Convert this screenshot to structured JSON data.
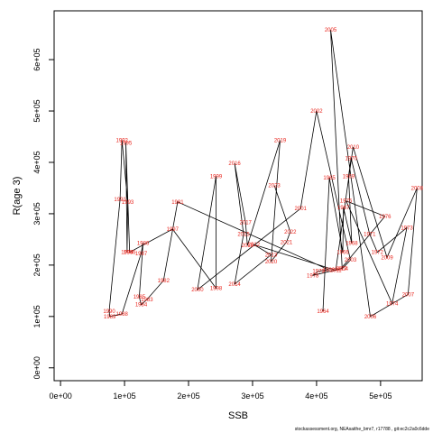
{
  "chart_data": {
    "type": "line",
    "xlabel": "SSB",
    "ylabel": "R(age 3)",
    "xlim": [
      -10000,
      565000
    ],
    "ylim": [
      -25000,
      695000
    ],
    "x_ticks": [
      0,
      100000,
      200000,
      300000,
      400000,
      500000
    ],
    "x_tick_labels": [
      "0e+00",
      "1e+05",
      "2e+05",
      "3e+05",
      "4e+05",
      "5e+05"
    ],
    "y_ticks": [
      0,
      100000,
      200000,
      300000,
      400000,
      500000,
      600000
    ],
    "y_tick_labels": [
      "0e+00",
      "1e+05",
      "2e+05",
      "3e+05",
      "4e+05",
      "5e+05",
      "6e+05"
    ],
    "grid": false,
    "label_color": "#e8231b",
    "line_color": "#000000",
    "points": [
      {
        "year": "1964",
        "x": 410000,
        "y": 110000
      },
      {
        "year": "1965",
        "x": 420000,
        "y": 370000
      },
      {
        "year": "1966",
        "x": 441000,
        "y": 225000
      },
      {
        "year": "1967",
        "x": 442000,
        "y": 312000
      },
      {
        "year": "1968",
        "x": 455000,
        "y": 243000
      },
      {
        "year": "1969",
        "x": 450000,
        "y": 373000
      },
      {
        "year": "1970",
        "x": 454000,
        "y": 408000
      },
      {
        "year": "1971",
        "x": 483000,
        "y": 260000
      },
      {
        "year": "1972",
        "x": 495000,
        "y": 225000
      },
      {
        "year": "1973",
        "x": 541000,
        "y": 273000
      },
      {
        "year": "1974",
        "x": 518000,
        "y": 125000
      },
      {
        "year": "1975",
        "x": 446000,
        "y": 325000
      },
      {
        "year": "1976",
        "x": 507000,
        "y": 295000
      },
      {
        "year": "1977",
        "x": 438000,
        "y": 193000
      },
      {
        "year": "1978",
        "x": 394000,
        "y": 180000
      },
      {
        "year": "1979",
        "x": 403000,
        "y": 188000
      },
      {
        "year": "1980",
        "x": 419000,
        "y": 191000
      },
      {
        "year": "1981",
        "x": 183000,
        "y": 323000
      },
      {
        "year": "1982",
        "x": 161000,
        "y": 170000
      },
      {
        "year": "1983",
        "x": 135000,
        "y": 133000
      },
      {
        "year": "1984",
        "x": 126000,
        "y": 123000
      },
      {
        "year": "1985",
        "x": 123000,
        "y": 138000
      },
      {
        "year": "1986",
        "x": 129000,
        "y": 243000
      },
      {
        "year": "1987",
        "x": 126000,
        "y": 223000
      },
      {
        "year": "1988",
        "x": 96000,
        "y": 105000
      },
      {
        "year": "1989",
        "x": 77000,
        "y": 100000
      },
      {
        "year": "1990",
        "x": 76000,
        "y": 110000
      },
      {
        "year": "1991",
        "x": 93000,
        "y": 328000
      },
      {
        "year": "1992",
        "x": 96000,
        "y": 443000
      },
      {
        "year": "1993",
        "x": 105000,
        "y": 323000
      },
      {
        "year": "1994",
        "x": 104000,
        "y": 225000
      },
      {
        "year": "1995",
        "x": 102000,
        "y": 438000
      },
      {
        "year": "1996",
        "x": 108000,
        "y": 225000
      },
      {
        "year": "1997",
        "x": 175000,
        "y": 270000
      },
      {
        "year": "1998",
        "x": 243000,
        "y": 155000
      },
      {
        "year": "1999",
        "x": 243000,
        "y": 373000
      },
      {
        "year": "2000",
        "x": 214000,
        "y": 152000
      },
      {
        "year": "2001",
        "x": 375000,
        "y": 310000
      },
      {
        "year": "2002",
        "x": 400000,
        "y": 500000
      },
      {
        "year": "2003",
        "x": 453000,
        "y": 210000
      },
      {
        "year": "2004",
        "x": 440000,
        "y": 193000
      },
      {
        "year": "2005",
        "x": 422000,
        "y": 658000
      },
      {
        "year": "2006",
        "x": 484000,
        "y": 100000
      },
      {
        "year": "2007",
        "x": 543000,
        "y": 143000
      },
      {
        "year": "2008",
        "x": 557000,
        "y": 350000
      },
      {
        "year": "2009",
        "x": 510000,
        "y": 215000
      },
      {
        "year": "2010",
        "x": 457000,
        "y": 430000
      },
      {
        "year": "2011",
        "x": 430000,
        "y": 190000
      },
      {
        "year": "2012",
        "x": 302000,
        "y": 240000
      },
      {
        "year": "2013",
        "x": 329000,
        "y": 220000
      },
      {
        "year": "2014",
        "x": 272000,
        "y": 163000
      },
      {
        "year": "2015",
        "x": 286000,
        "y": 260000
      },
      {
        "year": "2016",
        "x": 272000,
        "y": 398000
      },
      {
        "year": "2017",
        "x": 289000,
        "y": 283000
      },
      {
        "year": "2018",
        "x": 292000,
        "y": 238000
      },
      {
        "year": "2019",
        "x": 343000,
        "y": 443000
      },
      {
        "year": "2020",
        "x": 329000,
        "y": 207000
      },
      {
        "year": "2021",
        "x": 353000,
        "y": 245000
      },
      {
        "year": "2022",
        "x": 359000,
        "y": 265000
      },
      {
        "year": "2023",
        "x": 334000,
        "y": 355000
      }
    ],
    "path_order": [
      "1964",
      "1965",
      "1966",
      "1967",
      "1968",
      "1969",
      "1970",
      "1971",
      "1972",
      "1973",
      "1974",
      "1975",
      "1976",
      "1977",
      "1978",
      "1979",
      "1980",
      "1981",
      "1982",
      "1983",
      "1984",
      "1985",
      "1986",
      "1987",
      "1988",
      "1989",
      "1990",
      "1991",
      "1992",
      "1993",
      "1994",
      "1995",
      "1996",
      "1997",
      "1998",
      "1999",
      "2000",
      "2001",
      "2002",
      "2003",
      "2004",
      "2005",
      "2006",
      "2007",
      "2008",
      "2009",
      "2010",
      "2011",
      "2012",
      "2013",
      "2014",
      "2015",
      "2016",
      "2017",
      "2018",
      "2019",
      "2020",
      "2021",
      "2022",
      "2023"
    ]
  },
  "footer_text": "stockassessment.org, NEAsaithe_bmr7, r17788 , git:ec2c2a0c6dde"
}
